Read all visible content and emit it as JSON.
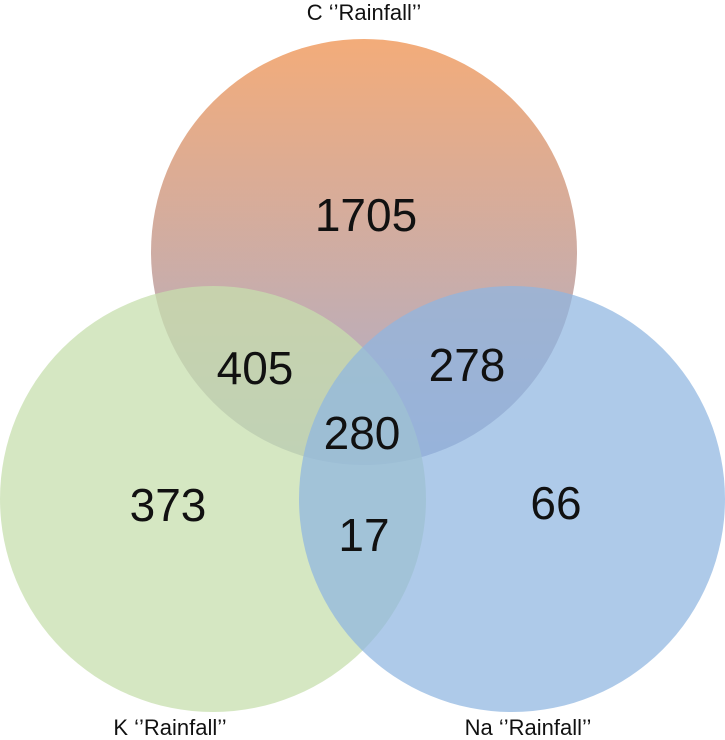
{
  "diagram": {
    "type": "venn",
    "sets": [
      {
        "id": "C",
        "label": "C ‘’Rainfall’’",
        "color_top": "#f2a56e",
        "color_bottom": "#a3a6c9"
      },
      {
        "id": "K",
        "label": "K ‘’Rainfall’’",
        "color": "#cfe3b6"
      },
      {
        "id": "Na",
        "label": "Na ‘’Rainfall’’",
        "color": "#9dbfe3"
      }
    ],
    "regions": {
      "C_only": "1705",
      "K_only": "373",
      "Na_only": "66",
      "C_K": "405",
      "C_Na": "278",
      "K_Na": "17",
      "C_K_Na": "280"
    }
  }
}
